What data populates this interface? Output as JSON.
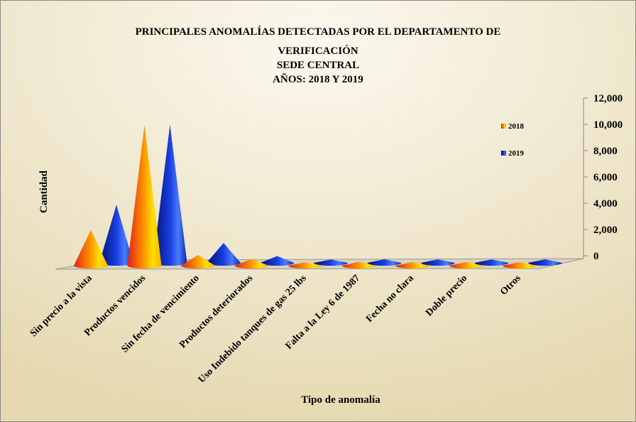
{
  "chart_data": {
    "type": "cone3d",
    "title": [
      "PRINCIPALES  ANOMALÍAS  DETECTADAS  POR EL DEPARTAMENTO  DE",
      "VERIFICACIÓN",
      "SEDE CENTRAL",
      "AÑOS: 2018 Y 2019"
    ],
    "y_label": "Cantidad",
    "x_label": "Tipo de anomalía",
    "categories": [
      "Sin precio a la vista",
      "Productos vencidos",
      "Sin fecha de vencimiento",
      "Productos deteriorados",
      "Uso Indebido tanques de gas 25 lbs",
      "Falta a la Ley 6 de 1987",
      "Fecha no clara",
      "Doble precio",
      "Otros"
    ],
    "series": [
      {
        "name": "2018",
        "color": "#ff8c00",
        "values": [
          2500,
          10500,
          600,
          300,
          50,
          80,
          60,
          70,
          60
        ]
      },
      {
        "name": "2019",
        "color": "#1a3fe0",
        "values": [
          4200,
          10300,
          1300,
          300,
          40,
          60,
          50,
          50,
          60
        ]
      }
    ],
    "ylim": [
      0,
      12000
    ],
    "yticks": [
      0,
      {
        "value": 2000,
        "label": "2,000"
      },
      {
        "value": 4000,
        "label": "4,000"
      },
      {
        "value": 6000,
        "label": "6,000"
      },
      {
        "value": 8000,
        "label": "8,000"
      },
      {
        "value": 10000,
        "label": "10,000"
      },
      {
        "value": 12000,
        "label": "12,000"
      }
    ],
    "legend": "top-right"
  }
}
